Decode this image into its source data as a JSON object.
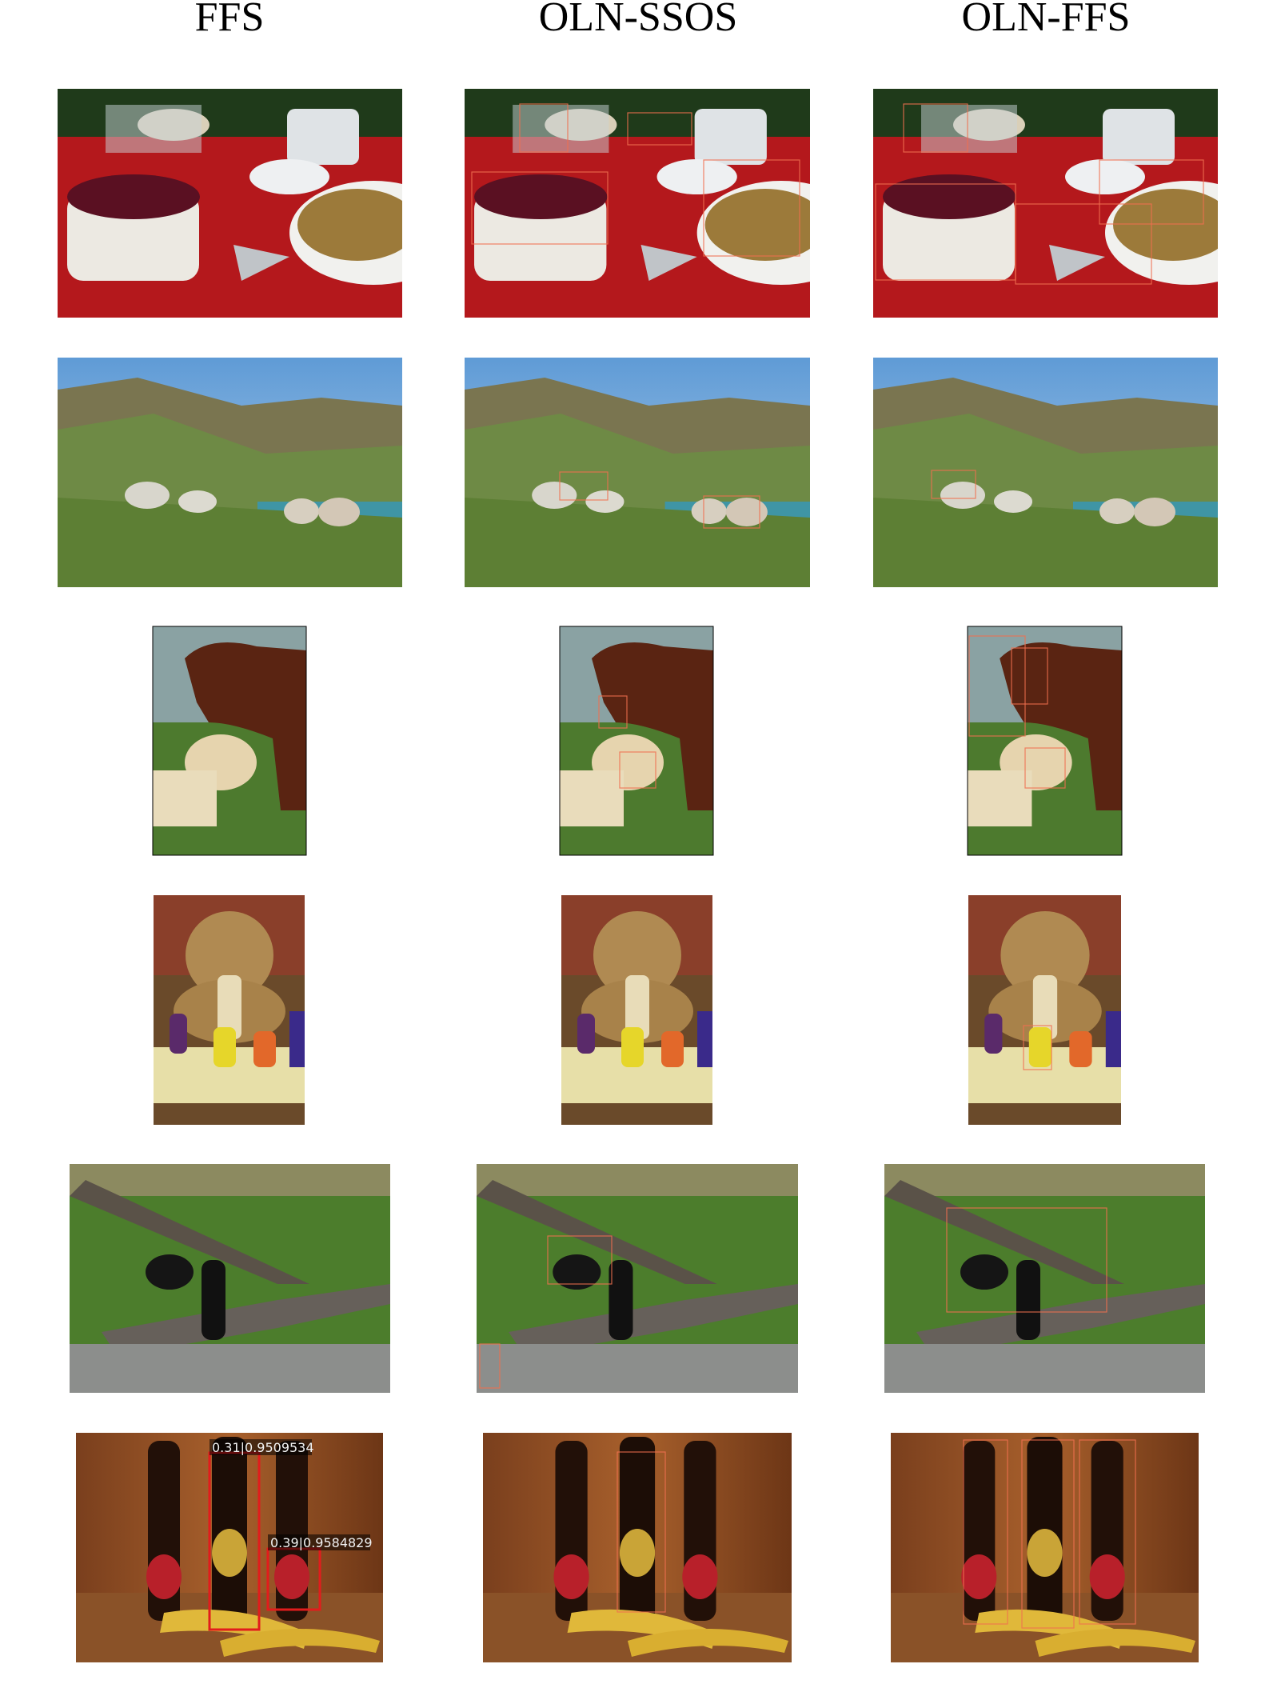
{
  "headers": [
    "FFS",
    "OLN-SSOS",
    "OLN-FFS"
  ],
  "detections": [
    {
      "label": "0.31|0.9509534"
    },
    {
      "label": "0.39|0.9584829"
    }
  ]
}
